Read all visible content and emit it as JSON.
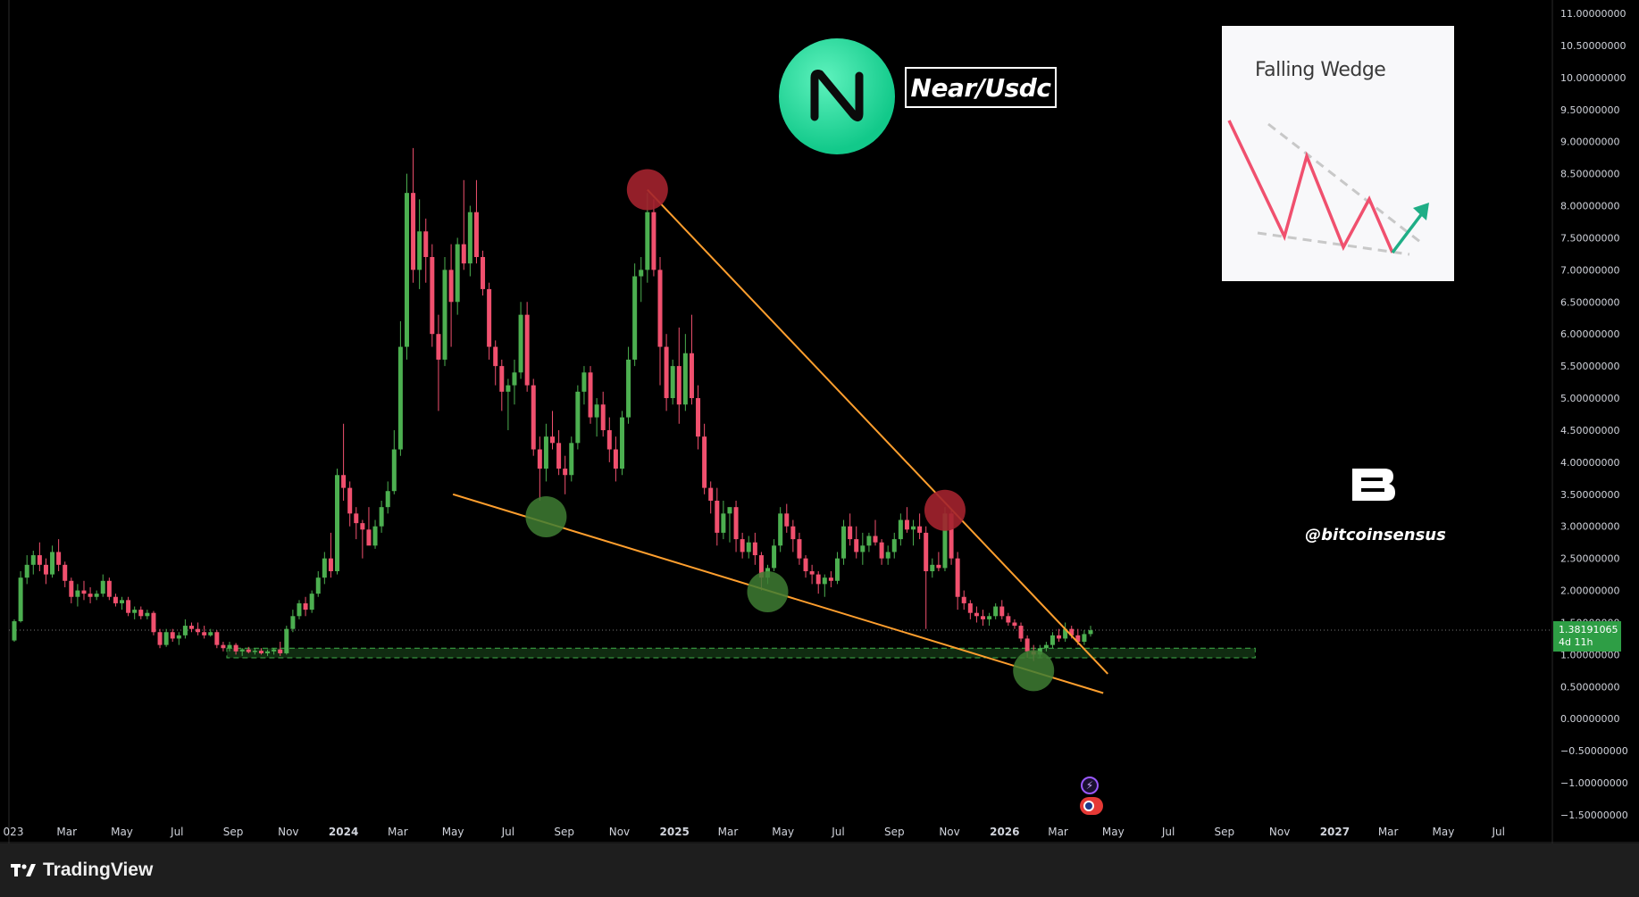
{
  "app": {
    "brand": "TradingView",
    "pair_title": "Near/Usdc",
    "watermark_handle": "@bitcoinsensus",
    "watermark_logo": "bitcoinsensus-logo",
    "token_logo": "near-logo",
    "inset_title": "Falling Wedge",
    "price_label": {
      "value": "1.38191065",
      "countdown": "4d 11h"
    },
    "colors": {
      "background": "#000000",
      "up": "#4caf50",
      "down": "#f0506e",
      "trendline": "#ff9f2e",
      "resistance_marker": "#a3222e",
      "support_marker": "#3e7c32",
      "support_zone": "#2e7d32",
      "price_label": "#2e9e45"
    }
  },
  "chart_data": {
    "type": "candlestick",
    "title": "Near/Usdc",
    "interval": "weekly",
    "ylim": [
      -1.5,
      11.0
    ],
    "y_ticks": [
      "11.00000000",
      "10.50000000",
      "10.00000000",
      "9.50000000",
      "9.00000000",
      "8.50000000",
      "8.00000000",
      "7.50000000",
      "7.00000000",
      "6.50000000",
      "6.00000000",
      "5.50000000",
      "5.00000000",
      "4.50000000",
      "4.00000000",
      "3.50000000",
      "3.00000000",
      "2.50000000",
      "2.00000000",
      "1.50000000",
      "1.00000000",
      "0.50000000",
      "0.00000000",
      "−0.50000000",
      "−1.00000000",
      "−1.50000000"
    ],
    "x_ticks": [
      {
        "label": "023",
        "date": "2023-01-01"
      },
      {
        "label": "Mar",
        "date": "2023-03-01"
      },
      {
        "label": "May",
        "date": "2023-05-01"
      },
      {
        "label": "Jul",
        "date": "2023-07-01"
      },
      {
        "label": "Sep",
        "date": "2023-09-01"
      },
      {
        "label": "Nov",
        "date": "2023-11-01"
      },
      {
        "label": "2024",
        "date": "2024-01-01",
        "year": true
      },
      {
        "label": "Mar",
        "date": "2024-03-01"
      },
      {
        "label": "May",
        "date": "2024-05-01"
      },
      {
        "label": "Jul",
        "date": "2024-07-01"
      },
      {
        "label": "Sep",
        "date": "2024-09-01"
      },
      {
        "label": "Nov",
        "date": "2024-11-01"
      },
      {
        "label": "2025",
        "date": "2025-01-01",
        "year": true
      },
      {
        "label": "Mar",
        "date": "2025-03-01"
      },
      {
        "label": "May",
        "date": "2025-05-01"
      },
      {
        "label": "Jul",
        "date": "2025-07-01"
      },
      {
        "label": "Sep",
        "date": "2025-09-01"
      },
      {
        "label": "Nov",
        "date": "2025-11-01"
      },
      {
        "label": "2026",
        "date": "2026-01-01",
        "year": true
      },
      {
        "label": "Mar",
        "date": "2026-03-01"
      },
      {
        "label": "May",
        "date": "2026-05-01"
      },
      {
        "label": "Jul",
        "date": "2026-07-01"
      },
      {
        "label": "Sep",
        "date": "2026-09-01"
      },
      {
        "label": "Nov",
        "date": "2026-11-01"
      },
      {
        "label": "2027",
        "date": "2027-01-01",
        "year": true
      },
      {
        "label": "Mar",
        "date": "2027-03-01"
      },
      {
        "label": "May",
        "date": "2027-05-01"
      },
      {
        "label": "Jul",
        "date": "2027-07-01"
      }
    ],
    "last_price": 1.38191065,
    "candles": [
      [
        "2023-01-02",
        1.22,
        1.55,
        1.2,
        1.52
      ],
      [
        "2023-01-09",
        1.52,
        2.3,
        1.5,
        2.2
      ],
      [
        "2023-01-16",
        2.2,
        2.55,
        2.1,
        2.4
      ],
      [
        "2023-01-23",
        2.4,
        2.62,
        2.25,
        2.55
      ],
      [
        "2023-01-30",
        2.55,
        2.75,
        2.3,
        2.4
      ],
      [
        "2023-02-06",
        2.4,
        2.5,
        2.1,
        2.25
      ],
      [
        "2023-02-13",
        2.25,
        2.7,
        2.2,
        2.6
      ],
      [
        "2023-02-20",
        2.6,
        2.8,
        2.3,
        2.4
      ],
      [
        "2023-02-27",
        2.4,
        2.45,
        2.05,
        2.15
      ],
      [
        "2023-03-06",
        2.15,
        2.2,
        1.8,
        1.9
      ],
      [
        "2023-03-13",
        1.9,
        2.1,
        1.75,
        2.0
      ],
      [
        "2023-03-20",
        2.0,
        2.15,
        1.85,
        1.95
      ],
      [
        "2023-03-27",
        1.95,
        2.05,
        1.8,
        1.9
      ],
      [
        "2023-04-03",
        1.9,
        2.0,
        1.85,
        1.95
      ],
      [
        "2023-04-10",
        1.95,
        2.25,
        1.9,
        2.15
      ],
      [
        "2023-04-17",
        2.15,
        2.2,
        1.85,
        1.9
      ],
      [
        "2023-04-24",
        1.9,
        1.95,
        1.75,
        1.8
      ],
      [
        "2023-05-01",
        1.8,
        1.9,
        1.7,
        1.85
      ],
      [
        "2023-05-08",
        1.85,
        1.9,
        1.6,
        1.65
      ],
      [
        "2023-05-15",
        1.65,
        1.75,
        1.55,
        1.7
      ],
      [
        "2023-05-22",
        1.7,
        1.75,
        1.55,
        1.6
      ],
      [
        "2023-05-29",
        1.6,
        1.7,
        1.55,
        1.65
      ],
      [
        "2023-06-05",
        1.65,
        1.68,
        1.3,
        1.35
      ],
      [
        "2023-06-12",
        1.35,
        1.4,
        1.1,
        1.15
      ],
      [
        "2023-06-19",
        1.15,
        1.4,
        1.12,
        1.35
      ],
      [
        "2023-06-26",
        1.35,
        1.4,
        1.2,
        1.25
      ],
      [
        "2023-07-03",
        1.25,
        1.35,
        1.15,
        1.3
      ],
      [
        "2023-07-10",
        1.3,
        1.55,
        1.25,
        1.45
      ],
      [
        "2023-07-17",
        1.45,
        1.5,
        1.35,
        1.4
      ],
      [
        "2023-07-24",
        1.4,
        1.5,
        1.3,
        1.35
      ],
      [
        "2023-07-31",
        1.35,
        1.45,
        1.25,
        1.3
      ],
      [
        "2023-08-07",
        1.3,
        1.4,
        1.28,
        1.35
      ],
      [
        "2023-08-14",
        1.35,
        1.38,
        1.1,
        1.15
      ],
      [
        "2023-08-21",
        1.15,
        1.2,
        1.05,
        1.1
      ],
      [
        "2023-08-28",
        1.1,
        1.2,
        1.05,
        1.15
      ],
      [
        "2023-09-04",
        1.15,
        1.18,
        1.0,
        1.05
      ],
      [
        "2023-09-11",
        1.05,
        1.1,
        0.98,
        1.08
      ],
      [
        "2023-09-18",
        1.08,
        1.12,
        1.02,
        1.04
      ],
      [
        "2023-09-25",
        1.04,
        1.1,
        1.0,
        1.06
      ],
      [
        "2023-10-02",
        1.06,
        1.1,
        1.0,
        1.02
      ],
      [
        "2023-10-09",
        1.02,
        1.08,
        0.98,
        1.05
      ],
      [
        "2023-10-16",
        1.05,
        1.1,
        1.0,
        1.08
      ],
      [
        "2023-10-23",
        1.08,
        1.2,
        0.98,
        1.02
      ],
      [
        "2023-10-30",
        1.02,
        1.45,
        1.0,
        1.4
      ],
      [
        "2023-11-06",
        1.4,
        1.7,
        1.35,
        1.6
      ],
      [
        "2023-11-13",
        1.6,
        1.85,
        1.55,
        1.8
      ],
      [
        "2023-11-20",
        1.8,
        1.9,
        1.6,
        1.7
      ],
      [
        "2023-11-27",
        1.7,
        2.0,
        1.65,
        1.95
      ],
      [
        "2023-12-04",
        1.95,
        2.3,
        1.9,
        2.2
      ],
      [
        "2023-12-11",
        2.2,
        2.6,
        2.1,
        2.5
      ],
      [
        "2023-12-18",
        2.5,
        2.9,
        2.2,
        2.3
      ],
      [
        "2023-12-25",
        2.3,
        3.9,
        2.25,
        3.8
      ],
      [
        "2024-01-01",
        3.8,
        4.6,
        3.4,
        3.6
      ],
      [
        "2024-01-08",
        3.6,
        3.7,
        3.0,
        3.2
      ],
      [
        "2024-01-15",
        3.2,
        3.3,
        2.8,
        3.05
      ],
      [
        "2024-01-22",
        3.05,
        3.1,
        2.5,
        2.95
      ],
      [
        "2024-01-29",
        2.95,
        3.3,
        2.8,
        2.7
      ],
      [
        "2024-02-05",
        2.7,
        3.1,
        2.65,
        3.0
      ],
      [
        "2024-02-12",
        3.0,
        3.4,
        2.9,
        3.3
      ],
      [
        "2024-02-19",
        3.3,
        3.7,
        3.2,
        3.55
      ],
      [
        "2024-02-26",
        3.55,
        4.5,
        3.5,
        4.2
      ],
      [
        "2024-03-04",
        4.2,
        6.2,
        4.1,
        5.8
      ],
      [
        "2024-03-11",
        5.8,
        8.5,
        5.6,
        8.2
      ],
      [
        "2024-03-18",
        8.2,
        8.9,
        6.8,
        7.0
      ],
      [
        "2024-03-25",
        7.0,
        8.1,
        6.7,
        7.6
      ],
      [
        "2024-04-01",
        7.6,
        7.8,
        6.8,
        7.2
      ],
      [
        "2024-04-08",
        7.2,
        7.4,
        5.8,
        6.0
      ],
      [
        "2024-04-15",
        6.0,
        6.3,
        4.8,
        5.6
      ],
      [
        "2024-04-22",
        5.6,
        7.2,
        5.5,
        7.0
      ],
      [
        "2024-04-29",
        7.0,
        7.4,
        5.8,
        6.5
      ],
      [
        "2024-05-06",
        6.5,
        7.5,
        6.3,
        7.4
      ],
      [
        "2024-05-13",
        7.4,
        8.4,
        7.0,
        7.1
      ],
      [
        "2024-05-20",
        7.1,
        8.0,
        6.9,
        7.9
      ],
      [
        "2024-05-27",
        7.9,
        8.4,
        7.1,
        7.2
      ],
      [
        "2024-06-03",
        7.2,
        7.3,
        6.6,
        6.7
      ],
      [
        "2024-06-10",
        6.7,
        6.8,
        5.6,
        5.8
      ],
      [
        "2024-06-17",
        5.8,
        5.9,
        5.2,
        5.5
      ],
      [
        "2024-06-24",
        5.5,
        5.6,
        4.8,
        5.1
      ],
      [
        "2024-07-01",
        5.1,
        5.3,
        4.5,
        5.2
      ],
      [
        "2024-07-08",
        5.2,
        5.6,
        4.9,
        5.4
      ],
      [
        "2024-07-15",
        5.4,
        6.5,
        5.3,
        6.3
      ],
      [
        "2024-07-22",
        6.3,
        6.5,
        5.1,
        5.2
      ],
      [
        "2024-07-29",
        5.2,
        5.3,
        4.1,
        4.2
      ],
      [
        "2024-08-05",
        4.2,
        4.4,
        3.4,
        3.9
      ],
      [
        "2024-08-12",
        3.9,
        4.6,
        3.7,
        4.4
      ],
      [
        "2024-08-19",
        4.4,
        4.8,
        4.2,
        4.3
      ],
      [
        "2024-08-26",
        4.3,
        4.5,
        3.8,
        3.9
      ],
      [
        "2024-09-02",
        3.9,
        4.1,
        3.5,
        3.8
      ],
      [
        "2024-09-09",
        3.8,
        4.4,
        3.7,
        4.3
      ],
      [
        "2024-09-16",
        4.3,
        5.2,
        4.2,
        5.1
      ],
      [
        "2024-09-23",
        5.1,
        5.5,
        4.9,
        5.4
      ],
      [
        "2024-09-30",
        5.4,
        5.5,
        4.6,
        4.7
      ],
      [
        "2024-10-07",
        4.7,
        5.0,
        4.4,
        4.9
      ],
      [
        "2024-10-14",
        4.9,
        5.1,
        4.4,
        4.5
      ],
      [
        "2024-10-21",
        4.5,
        4.7,
        4.0,
        4.2
      ],
      [
        "2024-10-28",
        4.2,
        4.4,
        3.7,
        3.9
      ],
      [
        "2024-11-04",
        3.9,
        4.8,
        3.8,
        4.7
      ],
      [
        "2024-11-11",
        4.7,
        5.8,
        4.6,
        5.6
      ],
      [
        "2024-11-18",
        5.6,
        7.1,
        5.5,
        6.9
      ],
      [
        "2024-11-25",
        6.9,
        7.2,
        6.5,
        7.0
      ],
      [
        "2024-12-02",
        7.0,
        8.2,
        6.8,
        7.9
      ],
      [
        "2024-12-09",
        7.9,
        8.1,
        6.9,
        7.0
      ],
      [
        "2024-12-16",
        7.0,
        7.2,
        5.2,
        5.8
      ],
      [
        "2024-12-23",
        5.8,
        6.0,
        4.8,
        5.0
      ],
      [
        "2024-12-30",
        5.0,
        5.6,
        4.9,
        5.5
      ],
      [
        "2025-01-06",
        5.5,
        6.1,
        4.6,
        4.9
      ],
      [
        "2025-01-13",
        4.9,
        6.0,
        4.8,
        5.7
      ],
      [
        "2025-01-20",
        5.7,
        6.3,
        4.9,
        5.0
      ],
      [
        "2025-01-27",
        5.0,
        5.2,
        4.2,
        4.4
      ],
      [
        "2025-02-03",
        4.4,
        4.6,
        3.5,
        3.6
      ],
      [
        "2025-02-10",
        3.6,
        3.7,
        3.2,
        3.4
      ],
      [
        "2025-02-17",
        3.4,
        3.6,
        2.7,
        2.9
      ],
      [
        "2025-02-24",
        2.9,
        3.4,
        2.8,
        3.2
      ],
      [
        "2025-03-03",
        3.2,
        3.3,
        2.75,
        3.3
      ],
      [
        "2025-03-10",
        3.3,
        3.4,
        2.6,
        2.8
      ],
      [
        "2025-03-17",
        2.8,
        2.9,
        2.5,
        2.6
      ],
      [
        "2025-03-24",
        2.6,
        2.85,
        2.5,
        2.75
      ],
      [
        "2025-03-31",
        2.75,
        2.9,
        2.4,
        2.55
      ],
      [
        "2025-04-07",
        2.55,
        2.6,
        2.0,
        2.2
      ],
      [
        "2025-04-14",
        2.2,
        2.4,
        2.1,
        2.35
      ],
      [
        "2025-04-21",
        2.35,
        2.8,
        2.3,
        2.7
      ],
      [
        "2025-04-28",
        2.7,
        3.3,
        2.6,
        3.2
      ],
      [
        "2025-05-05",
        3.2,
        3.35,
        2.9,
        3.0
      ],
      [
        "2025-05-12",
        3.0,
        3.1,
        2.6,
        2.8
      ],
      [
        "2025-05-19",
        2.8,
        2.9,
        2.4,
        2.5
      ],
      [
        "2025-05-26",
        2.5,
        2.55,
        2.2,
        2.3
      ],
      [
        "2025-06-02",
        2.3,
        2.4,
        2.1,
        2.25
      ],
      [
        "2025-06-09",
        2.25,
        2.3,
        1.95,
        2.1
      ],
      [
        "2025-06-16",
        2.1,
        2.25,
        1.9,
        2.2
      ],
      [
        "2025-06-23",
        2.2,
        2.3,
        2.05,
        2.15
      ],
      [
        "2025-06-30",
        2.15,
        2.6,
        2.1,
        2.5
      ],
      [
        "2025-07-07",
        2.5,
        3.1,
        2.4,
        3.0
      ],
      [
        "2025-07-14",
        3.0,
        3.2,
        2.7,
        2.8
      ],
      [
        "2025-07-21",
        2.8,
        3.0,
        2.5,
        2.6
      ],
      [
        "2025-07-28",
        2.6,
        2.9,
        2.4,
        2.7
      ],
      [
        "2025-08-04",
        2.7,
        2.9,
        2.6,
        2.85
      ],
      [
        "2025-08-11",
        2.85,
        3.1,
        2.7,
        2.75
      ],
      [
        "2025-08-18",
        2.75,
        2.8,
        2.4,
        2.5
      ],
      [
        "2025-08-25",
        2.5,
        2.7,
        2.4,
        2.6
      ],
      [
        "2025-09-01",
        2.6,
        2.9,
        2.5,
        2.8
      ],
      [
        "2025-09-08",
        2.8,
        3.2,
        2.7,
        3.1
      ],
      [
        "2025-09-15",
        3.1,
        3.3,
        2.9,
        2.95
      ],
      [
        "2025-09-22",
        2.95,
        3.1,
        2.7,
        3.0
      ],
      [
        "2025-09-29",
        3.0,
        3.2,
        2.8,
        2.9
      ],
      [
        "2025-10-06",
        2.9,
        3.0,
        1.4,
        2.3
      ],
      [
        "2025-10-13",
        2.3,
        2.5,
        2.2,
        2.4
      ],
      [
        "2025-10-20",
        2.4,
        2.6,
        2.3,
        2.35
      ],
      [
        "2025-10-27",
        2.35,
        3.3,
        2.3,
        3.2
      ],
      [
        "2025-11-03",
        3.2,
        3.25,
        2.4,
        2.5
      ],
      [
        "2025-11-10",
        2.5,
        2.6,
        1.7,
        1.9
      ],
      [
        "2025-11-17",
        1.9,
        2.0,
        1.7,
        1.8
      ],
      [
        "2025-11-24",
        1.8,
        1.85,
        1.55,
        1.65
      ],
      [
        "2025-12-01",
        1.65,
        1.75,
        1.5,
        1.6
      ],
      [
        "2025-12-08",
        1.6,
        1.7,
        1.45,
        1.55
      ],
      [
        "2025-12-15",
        1.55,
        1.65,
        1.45,
        1.6
      ],
      [
        "2025-12-22",
        1.6,
        1.8,
        1.55,
        1.75
      ],
      [
        "2025-12-29",
        1.75,
        1.85,
        1.55,
        1.6
      ],
      [
        "2026-01-05",
        1.6,
        1.65,
        1.45,
        1.5
      ],
      [
        "2026-01-12",
        1.5,
        1.55,
        1.4,
        1.45
      ],
      [
        "2026-01-19",
        1.45,
        1.5,
        1.2,
        1.25
      ],
      [
        "2026-01-26",
        1.25,
        1.3,
        0.95,
        1.05
      ],
      [
        "2026-02-02",
        1.05,
        1.15,
        0.9,
        1.0
      ],
      [
        "2026-02-09",
        1.0,
        1.15,
        0.95,
        1.1
      ],
      [
        "2026-02-16",
        1.1,
        1.2,
        1.05,
        1.15
      ],
      [
        "2026-02-23",
        1.15,
        1.35,
        1.1,
        1.3
      ],
      [
        "2026-03-02",
        1.3,
        1.4,
        1.2,
        1.25
      ],
      [
        "2026-03-09",
        1.25,
        1.5,
        1.2,
        1.4
      ],
      [
        "2026-03-16",
        1.4,
        1.45,
        1.25,
        1.3
      ],
      [
        "2026-03-23",
        1.3,
        1.4,
        1.15,
        1.2
      ],
      [
        "2026-03-30",
        1.2,
        1.38,
        1.15,
        1.32
      ],
      [
        "2026-04-06",
        1.32,
        1.45,
        1.28,
        1.38
      ]
    ],
    "overlays": {
      "upper_trendline": [
        [
          "2024-12-02",
          8.25
        ],
        [
          "2026-04-25",
          0.7
        ]
      ],
      "lower_trendline": [
        [
          "2024-05-01",
          3.5
        ],
        [
          "2026-04-20",
          0.4
        ]
      ],
      "support_zone": {
        "from": "2023-08-25",
        "to": "2026-10-05",
        "low": 0.95,
        "high": 1.1
      },
      "resistance_markers": [
        [
          "2024-12-02",
          8.25
        ],
        [
          "2025-10-27",
          3.25
        ]
      ],
      "support_markers": [
        [
          "2024-08-12",
          3.15
        ],
        [
          "2025-04-14",
          1.98
        ],
        [
          "2026-02-02",
          0.75
        ]
      ]
    }
  }
}
